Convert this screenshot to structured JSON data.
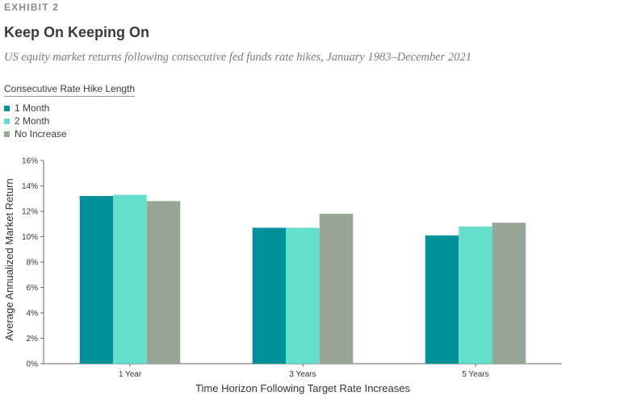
{
  "header": {
    "exhibit": "EXHIBIT 2",
    "title": "Keep On Keeping On",
    "subtitle": "US equity market returns following consecutive fed funds rate hikes, January 1983–December 2021"
  },
  "legend": {
    "title": "Consecutive Rate Hike Length"
  },
  "chart_data": {
    "type": "bar",
    "title": "Keep On Keeping On",
    "subtitle": "US equity market returns following consecutive fed funds rate hikes, January 1983–December 2021",
    "xlabel": "Time Horizon Following Target Rate Increases",
    "ylabel": "Average Annualized Market Return",
    "categories": [
      "1 Year",
      "3 Years",
      "5 Years"
    ],
    "ylim": [
      0,
      16
    ],
    "yticks": [
      0,
      2,
      4,
      6,
      8,
      10,
      12,
      14,
      16
    ],
    "ytick_labels": [
      "0%",
      "2%",
      "4%",
      "6%",
      "8%",
      "10%",
      "12%",
      "14%",
      "16%"
    ],
    "legend_title": "Consecutive Rate Hike Length",
    "legend_position": "top-left",
    "grid": false,
    "series": [
      {
        "name": "1 Month",
        "color": "#00929b",
        "values": [
          13.2,
          10.7,
          10.1
        ]
      },
      {
        "name": "2 Month",
        "color": "#64dfcc",
        "values": [
          13.3,
          10.7,
          10.8
        ]
      },
      {
        "name": "No Increase",
        "color": "#97a596",
        "values": [
          12.8,
          11.8,
          11.1
        ]
      }
    ]
  }
}
